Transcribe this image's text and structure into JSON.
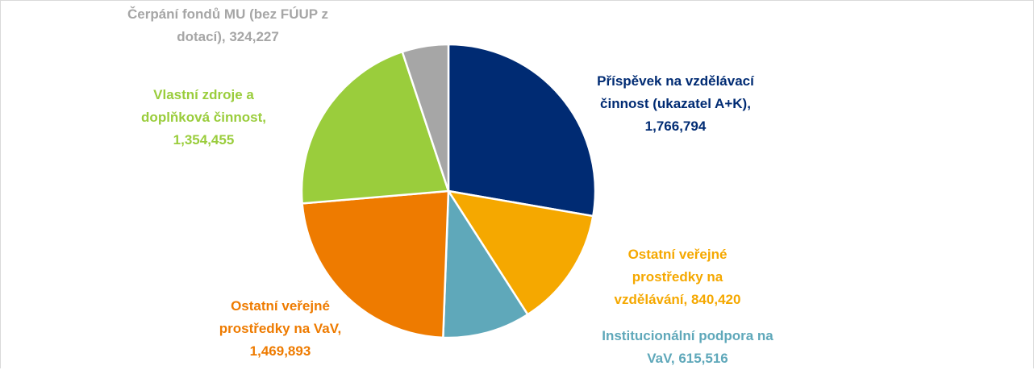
{
  "chart_data": {
    "type": "pie",
    "values": [
      1766794,
      840420,
      615516,
      1469893,
      1354455,
      324227
    ],
    "value_labels": [
      "Příspěvek na vzdělávací činnost (ukazatel A+K), 1,766,794",
      "Ostatní veřejné prostředky na vzdělávání, 840,420",
      "Institucionální podpora na VaV, 615,516",
      "Ostatní veřejné prostředky na VaV, 1,469,893",
      "Vlastní zdroje a doplňková činnost, 1,354,455",
      "Čerpání fondů MU (bez FÚUP z dotací), 324,227"
    ],
    "colors": [
      "#002b73",
      "#f5a800",
      "#5fa8ba",
      "#ee7b00",
      "#9acd3c",
      "#a6a6a6"
    ]
  }
}
